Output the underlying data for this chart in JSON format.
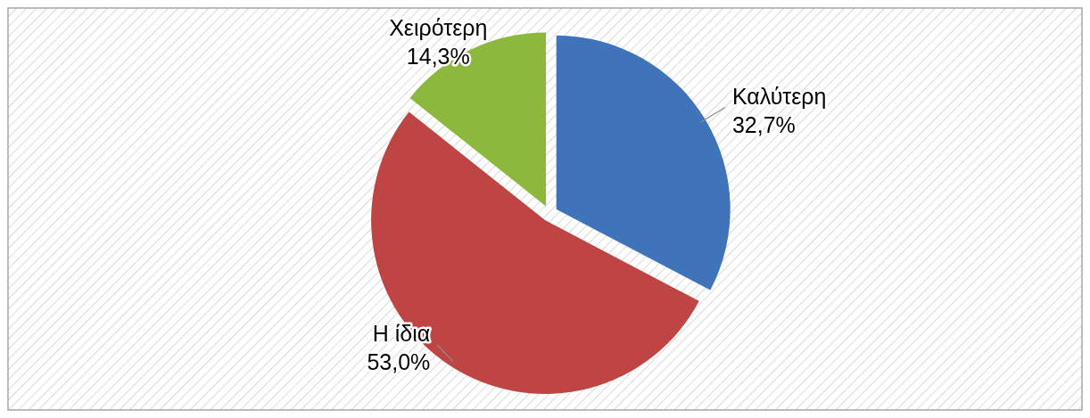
{
  "chart_data": {
    "type": "pie",
    "categories": [
      "Καλύτερη",
      "Η ίδια",
      "Χειρότερη"
    ],
    "values": [
      32.7,
      53.0,
      14.3
    ],
    "colors": [
      "#3f74bb",
      "#bf4545",
      "#8cb83e"
    ],
    "value_labels": [
      "32,7%",
      "53,0%",
      "14,3%"
    ]
  }
}
